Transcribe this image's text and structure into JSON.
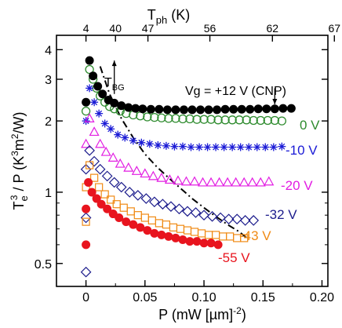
{
  "chart_data": {
    "type": "scatter",
    "xlabel": "P (mW [µm]",
    "xlabel_sup": "-2",
    "xlabel_end": ")",
    "ylabel_main": "T",
    "ylabel_sub": "e",
    "ylabel_sup": "3",
    "ylabel_mid": " / P (K",
    "ylabel_sup2": "3",
    "ylabel_end": "m",
    "ylabel_sup3": "2",
    "ylabel_tail": "/W)",
    "top_label_main": "T",
    "top_label_sub": "ph",
    "top_label_end": " (K)",
    "xlim": [
      -0.025,
      0.205
    ],
    "ylim": [
      0.4,
      4.6
    ],
    "yscale": "log",
    "x_ticks": [
      0,
      0.05,
      0.1,
      0.15,
      0.2
    ],
    "x_tick_labels": [
      "0",
      "0.05",
      "0.10",
      "0.15",
      "0.20"
    ],
    "y_ticks": [
      0.5,
      1,
      2,
      3,
      4
    ],
    "y_tick_labels": [
      "0.5",
      "1",
      "2",
      "3",
      "4"
    ],
    "top_ticks": [
      0,
      0.025,
      0.0525,
      0.105,
      0.158,
      0.2105
    ],
    "top_tick_labels": [
      "4",
      "40",
      "47",
      "56",
      "62",
      "67"
    ],
    "annotation_tbg": "T",
    "annotation_tbg_sub": "BG",
    "annotation_vg": "Vg = +12 V (CNP)",
    "series": [
      {
        "name": "0 V",
        "label": "0 V",
        "color": "#2e8b2e",
        "marker": "circle-open",
        "x": [
          0.0,
          0.003,
          0.006,
          0.009,
          0.012,
          0.016,
          0.02,
          0.024,
          0.029,
          0.034,
          0.04,
          0.046,
          0.052,
          0.058,
          0.064,
          0.07,
          0.076,
          0.082,
          0.088,
          0.094,
          0.1,
          0.106,
          0.112,
          0.118,
          0.124,
          0.13,
          0.136,
          0.142,
          0.148,
          0.154,
          0.16,
          0.166
        ],
        "y": [
          2.2,
          3.3,
          3.0,
          2.75,
          2.55,
          2.4,
          2.3,
          2.25,
          2.2,
          2.15,
          2.12,
          2.1,
          2.08,
          2.07,
          2.06,
          2.05,
          2.05,
          2.04,
          2.04,
          2.03,
          2.03,
          2.03,
          2.02,
          2.02,
          2.02,
          2.02,
          2.02,
          2.01,
          2.01,
          2.01,
          2.01,
          2.0
        ]
      },
      {
        "name": "+12 V (CNP)",
        "color": "#000000",
        "marker": "circle-filled",
        "x": [
          0.0,
          0.003,
          0.006,
          0.01,
          0.014,
          0.019,
          0.024,
          0.03,
          0.036,
          0.042,
          0.048,
          0.055,
          0.062,
          0.069,
          0.076,
          0.083,
          0.09,
          0.097,
          0.104,
          0.111,
          0.118,
          0.125,
          0.132,
          0.139,
          0.146,
          0.153,
          0.16,
          0.167,
          0.174
        ],
        "y": [
          2.4,
          3.6,
          3.1,
          2.8,
          2.6,
          2.45,
          2.38,
          2.32,
          2.28,
          2.26,
          2.25,
          2.24,
          2.24,
          2.23,
          2.23,
          2.23,
          2.23,
          2.23,
          2.23,
          2.23,
          2.24,
          2.24,
          2.24,
          2.24,
          2.25,
          2.25,
          2.25,
          2.26,
          2.26
        ]
      },
      {
        "name": "-10 V",
        "label": "-10 V",
        "color": "#1a1ad6",
        "marker": "asterisk",
        "x": [
          0.0,
          0.003,
          0.007,
          0.011,
          0.016,
          0.021,
          0.027,
          0.033,
          0.04,
          0.047,
          0.054,
          0.061,
          0.068,
          0.075,
          0.082,
          0.089,
          0.096,
          0.103,
          0.11,
          0.117,
          0.124,
          0.131,
          0.138,
          0.145,
          0.152,
          0.159,
          0.166
        ],
        "y": [
          2.0,
          2.75,
          2.4,
          2.15,
          1.95,
          1.85,
          1.75,
          1.7,
          1.65,
          1.62,
          1.6,
          1.58,
          1.57,
          1.56,
          1.56,
          1.55,
          1.55,
          1.55,
          1.55,
          1.55,
          1.55,
          1.55,
          1.55,
          1.55,
          1.55,
          1.55,
          1.56
        ]
      },
      {
        "name": "-20 V",
        "label": "-20 V",
        "color": "#e21ce2",
        "marker": "triangle-open",
        "x": [
          0.0,
          0.003,
          0.007,
          0.012,
          0.017,
          0.023,
          0.029,
          0.036,
          0.043,
          0.05,
          0.057,
          0.064,
          0.071,
          0.078,
          0.085,
          0.092,
          0.099,
          0.106,
          0.113,
          0.12,
          0.127,
          0.134,
          0.141,
          0.148,
          0.155
        ],
        "y": [
          1.6,
          2.05,
          1.8,
          1.6,
          1.48,
          1.4,
          1.32,
          1.27,
          1.23,
          1.2,
          1.17,
          1.15,
          1.13,
          1.12,
          1.11,
          1.11,
          1.1,
          1.1,
          1.1,
          1.1,
          1.1,
          1.1,
          1.1,
          1.1,
          1.11
        ]
      },
      {
        "name": "-32 V",
        "label": "-32 V",
        "color": "#1c1c8c",
        "marker": "diamond-open",
        "x": [
          0.0,
          0.0,
          0.0,
          0.003,
          0.007,
          0.012,
          0.018,
          0.024,
          0.03,
          0.037,
          0.044,
          0.051,
          0.058,
          0.065,
          0.072,
          0.079,
          0.086,
          0.093,
          0.1,
          0.107,
          0.114,
          0.121,
          0.128,
          0.135,
          0.142
        ],
        "y": [
          0.46,
          0.78,
          1.25,
          1.5,
          1.35,
          1.25,
          1.17,
          1.1,
          1.05,
          1.0,
          0.97,
          0.94,
          0.91,
          0.89,
          0.87,
          0.85,
          0.83,
          0.82,
          0.8,
          0.79,
          0.78,
          0.77,
          0.77,
          0.76,
          0.76
        ]
      },
      {
        "name": "-43 V",
        "label": "-43 V",
        "color": "#f08a14",
        "marker": "square-open",
        "x": [
          0.0,
          0.0,
          0.003,
          0.007,
          0.011,
          0.016,
          0.021,
          0.026,
          0.032,
          0.038,
          0.044,
          0.05,
          0.056,
          0.062,
          0.068,
          0.074,
          0.08,
          0.086,
          0.092,
          0.098,
          0.104,
          0.11,
          0.116,
          0.122,
          0.128,
          0.134
        ],
        "y": [
          0.75,
          1.05,
          1.3,
          1.15,
          1.05,
          0.98,
          0.93,
          0.89,
          0.86,
          0.83,
          0.8,
          0.78,
          0.76,
          0.74,
          0.73,
          0.71,
          0.7,
          0.69,
          0.68,
          0.67,
          0.66,
          0.66,
          0.65,
          0.65,
          0.64,
          0.64
        ]
      },
      {
        "name": "-55 V",
        "label": "-55 V",
        "color": "#e8141e",
        "marker": "circle-filled",
        "x": [
          0.0,
          0.0,
          0.002,
          0.005,
          0.009,
          0.013,
          0.018,
          0.023,
          0.028,
          0.034,
          0.04,
          0.046,
          0.052,
          0.058,
          0.064,
          0.07,
          0.076,
          0.082,
          0.088,
          0.094,
          0.1,
          0.106,
          0.112
        ],
        "y": [
          0.6,
          0.85,
          1.1,
          1.0,
          0.94,
          0.89,
          0.85,
          0.81,
          0.78,
          0.75,
          0.73,
          0.71,
          0.69,
          0.67,
          0.66,
          0.65,
          0.64,
          0.63,
          0.62,
          0.62,
          0.61,
          0.61,
          0.6
        ]
      }
    ],
    "dash_dot_curve": {
      "x": [
        0.012,
        0.02,
        0.03,
        0.04,
        0.05,
        0.06,
        0.07,
        0.08,
        0.09,
        0.1,
        0.11,
        0.12,
        0.13,
        0.138
      ],
      "y": [
        3.4,
        2.6,
        2.05,
        1.7,
        1.45,
        1.28,
        1.15,
        1.04,
        0.94,
        0.86,
        0.79,
        0.73,
        0.68,
        0.63
      ]
    },
    "arrows": [
      {
        "x": 0.024,
        "y_from": 2.6,
        "y_to": 3.6
      },
      {
        "x": 0.16,
        "y_from": 2.75,
        "y_to": 2.35
      }
    ]
  }
}
